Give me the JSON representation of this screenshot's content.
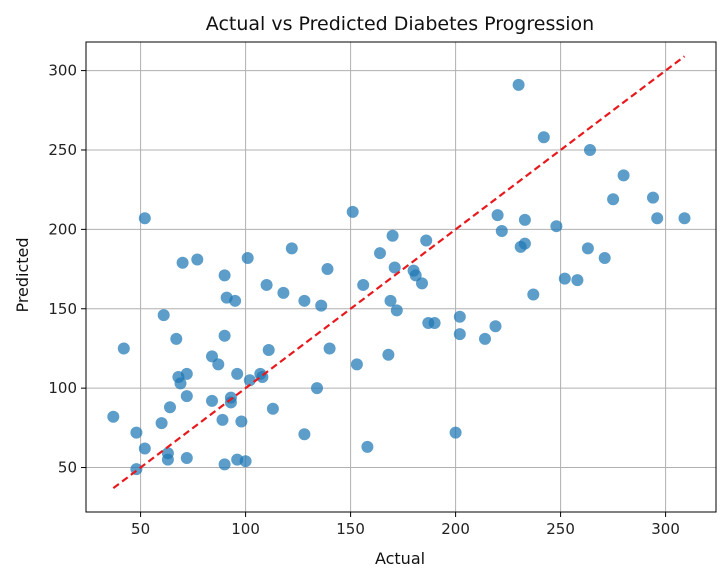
{
  "chart_data": {
    "type": "scatter",
    "title": "Actual vs Predicted Diabetes Progression",
    "xlabel": "Actual",
    "ylabel": "Predicted",
    "xlim": [
      24,
      324
    ],
    "ylim": [
      22,
      318
    ],
    "xticks": [
      50,
      100,
      150,
      200,
      250,
      300
    ],
    "yticks": [
      50,
      100,
      150,
      200,
      250,
      300
    ],
    "grid": true,
    "point_color": "#1f77b4",
    "points": [
      [
        37,
        82
      ],
      [
        42,
        125
      ],
      [
        48,
        72
      ],
      [
        48,
        49
      ],
      [
        52,
        62
      ],
      [
        52,
        207
      ],
      [
        60,
        78
      ],
      [
        61,
        146
      ],
      [
        63,
        55
      ],
      [
        63,
        59
      ],
      [
        64,
        88
      ],
      [
        67,
        131
      ],
      [
        68,
        107
      ],
      [
        69,
        103
      ],
      [
        70,
        179
      ],
      [
        72,
        56
      ],
      [
        72,
        95
      ],
      [
        72,
        109
      ],
      [
        77,
        181
      ],
      [
        84,
        120
      ],
      [
        84,
        92
      ],
      [
        87,
        115
      ],
      [
        89,
        80
      ],
      [
        90,
        52
      ],
      [
        90,
        133
      ],
      [
        90,
        171
      ],
      [
        91,
        157
      ],
      [
        93,
        94
      ],
      [
        93,
        91
      ],
      [
        95,
        155
      ],
      [
        96,
        55
      ],
      [
        96,
        109
      ],
      [
        98,
        79
      ],
      [
        100,
        54
      ],
      [
        101,
        182
      ],
      [
        102,
        105
      ],
      [
        107,
        109
      ],
      [
        108,
        107
      ],
      [
        110,
        165
      ],
      [
        111,
        124
      ],
      [
        113,
        87
      ],
      [
        118,
        160
      ],
      [
        122,
        188
      ],
      [
        128,
        155
      ],
      [
        128,
        71
      ],
      [
        134,
        100
      ],
      [
        136,
        152
      ],
      [
        139,
        175
      ],
      [
        140,
        125
      ],
      [
        151,
        211
      ],
      [
        153,
        115
      ],
      [
        156,
        165
      ],
      [
        158,
        63
      ],
      [
        164,
        185
      ],
      [
        168,
        121
      ],
      [
        169,
        155
      ],
      [
        170,
        196
      ],
      [
        171,
        176
      ],
      [
        172,
        149
      ],
      [
        180,
        174
      ],
      [
        181,
        171
      ],
      [
        184,
        166
      ],
      [
        186,
        193
      ],
      [
        187,
        141
      ],
      [
        190,
        141
      ],
      [
        200,
        72
      ],
      [
        202,
        145
      ],
      [
        202,
        134
      ],
      [
        214,
        131
      ],
      [
        219,
        139
      ],
      [
        220,
        209
      ],
      [
        222,
        199
      ],
      [
        230,
        291
      ],
      [
        231,
        189
      ],
      [
        233,
        206
      ],
      [
        233,
        191
      ],
      [
        237,
        159
      ],
      [
        242,
        258
      ],
      [
        248,
        202
      ],
      [
        252,
        169
      ],
      [
        258,
        168
      ],
      [
        263,
        188
      ],
      [
        264,
        250
      ],
      [
        271,
        182
      ],
      [
        275,
        219
      ],
      [
        280,
        234
      ],
      [
        294,
        220
      ],
      [
        296,
        207
      ],
      [
        309,
        207
      ]
    ],
    "reference_line": {
      "style": "dashed",
      "color": "#e8191d",
      "from": [
        37,
        37
      ],
      "to": [
        309,
        309
      ]
    }
  }
}
